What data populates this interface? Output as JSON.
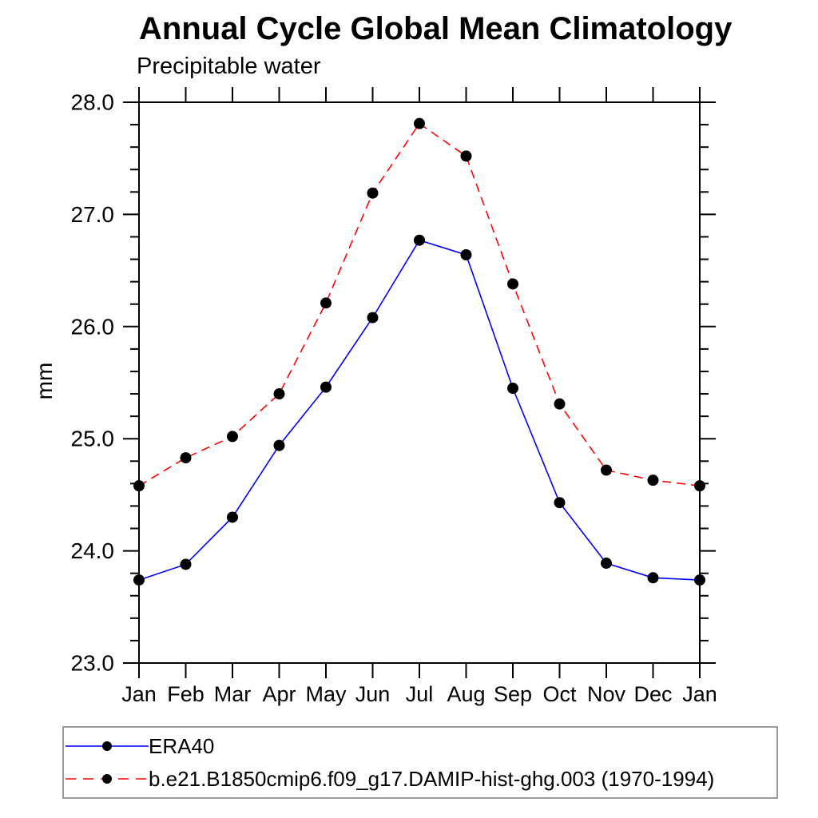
{
  "title": "Annual Cycle Global Mean Climatology",
  "subtitle": "Precipitable water",
  "ylabel": "mm",
  "colors": {
    "axis": "#000000",
    "marker": "#000000",
    "era40_line": "#0000ff",
    "model_line": "#ff0000",
    "legend_border": "#9a9a9a"
  },
  "chart_data": {
    "type": "line",
    "categories": [
      "Jan",
      "Feb",
      "Mar",
      "Apr",
      "May",
      "Jun",
      "Jul",
      "Aug",
      "Sep",
      "Oct",
      "Nov",
      "Dec",
      "Jan"
    ],
    "xlabel": "",
    "ylabel": "mm",
    "ylim": [
      23.0,
      28.0
    ],
    "ytick_major": 1.0,
    "ytick_minor": 0.2,
    "ytick_labels": [
      "23.0",
      "24.0",
      "25.0",
      "26.0",
      "27.0",
      "28.0"
    ],
    "grid": false,
    "legend_position": "bottom-box",
    "series": [
      {
        "name": "ERA40",
        "color": "#0000ff",
        "line_style": "solid",
        "marker": "circle",
        "marker_color": "#000000",
        "values": [
          23.74,
          23.88,
          24.3,
          24.94,
          25.46,
          26.08,
          26.77,
          26.64,
          25.45,
          24.43,
          23.89,
          23.76,
          23.74
        ]
      },
      {
        "name": "b.e21.B1850cmip6.f09_g17.DAMIP-hist-ghg.003 (1970-1994)",
        "color": "#ff0000",
        "line_style": "dashed",
        "marker": "circle",
        "marker_color": "#000000",
        "values": [
          24.58,
          24.83,
          25.02,
          25.4,
          26.21,
          27.19,
          27.81,
          27.52,
          26.38,
          25.31,
          24.72,
          24.63,
          24.58
        ]
      }
    ]
  }
}
